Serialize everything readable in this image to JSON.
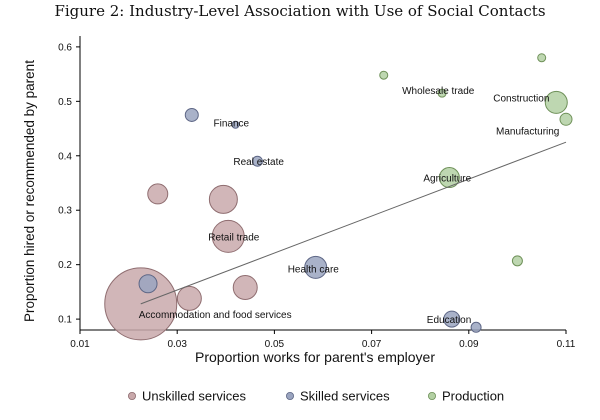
{
  "chart_data": {
    "type": "scatter",
    "title": "Figure 2: Industry-Level Association with Use of Social Contacts",
    "xlabel": "Proportion works for parent's employer",
    "ylabel": "Proportion hired or recommended by parent",
    "xlim": [
      0.01,
      0.11
    ],
    "ylim": [
      0.08,
      0.62
    ],
    "xticks": [
      0.01,
      0.03,
      0.05,
      0.07,
      0.09,
      0.11
    ],
    "xtick_labels": [
      "0.01",
      "0.03",
      "0.05",
      "0.07",
      "0.09",
      "0.11"
    ],
    "yticks": [
      0.1,
      0.2,
      0.3,
      0.4,
      0.5,
      0.6
    ],
    "ytick_labels": [
      "0.1",
      "0.2",
      "0.3",
      "0.4",
      "0.5",
      "0.6"
    ],
    "grid": false,
    "legend_position": "bottom",
    "colors": {
      "Unskilled services": "#c9a9ab",
      "Skilled services": "#9aa4bf",
      "Production": "#b3d0a3",
      "fitline": "#666666"
    },
    "fitline": {
      "x": [
        0.0225,
        0.11
      ],
      "y": [
        0.128,
        0.425
      ]
    },
    "series": [
      {
        "name": "Unskilled services",
        "points": [
          {
            "x": 0.0225,
            "y": 0.128,
            "size": 36,
            "label": "Accommodation and food services"
          },
          {
            "x": 0.0405,
            "y": 0.252,
            "size": 16,
            "label": "Retail trade"
          },
          {
            "x": 0.0395,
            "y": 0.32,
            "size": 14,
            "label": ""
          },
          {
            "x": 0.0325,
            "y": 0.138,
            "size": 12,
            "label": ""
          },
          {
            "x": 0.044,
            "y": 0.158,
            "size": 12,
            "label": ""
          },
          {
            "x": 0.026,
            "y": 0.33,
            "size": 10,
            "label": ""
          }
        ]
      },
      {
        "name": "Skilled services",
        "points": [
          {
            "x": 0.0585,
            "y": 0.195,
            "size": 11,
            "label": "Health care"
          },
          {
            "x": 0.0465,
            "y": 0.39,
            "size": 5,
            "label": "Real estate"
          },
          {
            "x": 0.042,
            "y": 0.457,
            "size": 3.5,
            "label": "Finance"
          },
          {
            "x": 0.0865,
            "y": 0.1,
            "size": 8,
            "label": "Education"
          },
          {
            "x": 0.033,
            "y": 0.475,
            "size": 6.5,
            "label": ""
          },
          {
            "x": 0.024,
            "y": 0.165,
            "size": 9,
            "label": ""
          },
          {
            "x": 0.0915,
            "y": 0.085,
            "size": 5,
            "label": ""
          }
        ]
      },
      {
        "name": "Production",
        "points": [
          {
            "x": 0.086,
            "y": 0.36,
            "size": 10,
            "label": "Agriculture"
          },
          {
            "x": 0.108,
            "y": 0.498,
            "size": 11,
            "label": "Construction"
          },
          {
            "x": 0.0845,
            "y": 0.515,
            "size": 4,
            "label": "Wholesale trade"
          },
          {
            "x": 0.11,
            "y": 0.467,
            "size": 6,
            "label": "Manufacturing"
          },
          {
            "x": 0.0725,
            "y": 0.548,
            "size": 4,
            "label": ""
          },
          {
            "x": 0.105,
            "y": 0.58,
            "size": 4,
            "label": ""
          },
          {
            "x": 0.1,
            "y": 0.207,
            "size": 5,
            "label": ""
          }
        ]
      }
    ]
  }
}
